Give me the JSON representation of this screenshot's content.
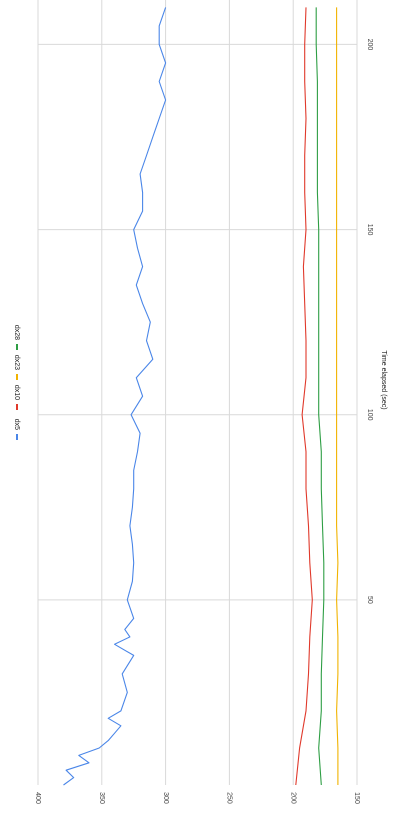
{
  "chart_data": {
    "type": "line",
    "title": "",
    "xlabel": "Time elapsed (sec)",
    "ylabel": "",
    "xlim": [
      0,
      212
    ],
    "ylim": [
      150,
      400
    ],
    "x_ticks": [
      50,
      100,
      150,
      200
    ],
    "y_ticks": [
      150,
      200,
      250,
      300,
      350,
      400
    ],
    "orientation": "rotated-90-clockwise",
    "grid": true,
    "legend_position": "top",
    "series": [
      {
        "name": "dx5",
        "color": "#4a86e8",
        "x": [
          0,
          2,
          4,
          6,
          8,
          10,
          12,
          14,
          16,
          18,
          20,
          25,
          30,
          35,
          38,
          40,
          42,
          45,
          50,
          55,
          60,
          65,
          70,
          75,
          80,
          85,
          90,
          95,
          100,
          105,
          110,
          115,
          120,
          125,
          130,
          135,
          140,
          145,
          150,
          155,
          160,
          165,
          170,
          175,
          180,
          185,
          190,
          195,
          200,
          205,
          210
        ],
        "values": [
          380,
          372,
          378,
          360,
          368,
          352,
          345,
          340,
          335,
          345,
          335,
          330,
          334,
          325,
          340,
          328,
          332,
          325,
          330,
          326,
          325,
          326,
          328,
          326,
          325,
          325,
          322,
          320,
          327,
          318,
          323,
          310,
          315,
          312,
          318,
          323,
          318,
          322,
          325,
          318,
          318,
          320,
          315,
          310,
          305,
          300,
          305,
          300,
          305,
          305,
          300
        ]
      },
      {
        "name": "dx10",
        "color": "#e0392b",
        "x": [
          0,
          10,
          20,
          30,
          40,
          50,
          60,
          70,
          80,
          90,
          100,
          110,
          120,
          130,
          140,
          150,
          160,
          170,
          180,
          190,
          200,
          210
        ],
        "values": [
          198,
          195,
          190,
          188,
          187,
          185,
          187,
          188,
          190,
          190,
          193,
          190,
          190,
          191,
          192,
          190,
          191,
          191,
          190,
          191,
          191,
          190
        ]
      },
      {
        "name": "dx23",
        "color": "#f1b300",
        "x": [
          0,
          10,
          20,
          30,
          40,
          50,
          60,
          70,
          80,
          90,
          100,
          110,
          120,
          130,
          140,
          150,
          160,
          170,
          180,
          190,
          200,
          210
        ],
        "values": [
          165,
          165,
          166,
          165,
          165,
          166,
          165,
          166,
          166,
          166,
          166,
          166,
          166,
          166,
          166,
          166,
          166,
          166,
          166,
          166,
          166,
          166
        ]
      },
      {
        "name": "dx28",
        "color": "#2e9e44",
        "x": [
          0,
          10,
          20,
          30,
          40,
          50,
          60,
          70,
          80,
          90,
          100,
          110,
          120,
          130,
          140,
          150,
          160,
          170,
          180,
          190,
          200,
          210
        ],
        "values": [
          178,
          180,
          178,
          178,
          177,
          176,
          176,
          177,
          178,
          178,
          180,
          180,
          180,
          180,
          180,
          180,
          181,
          181,
          181,
          181,
          182,
          182
        ]
      }
    ]
  }
}
